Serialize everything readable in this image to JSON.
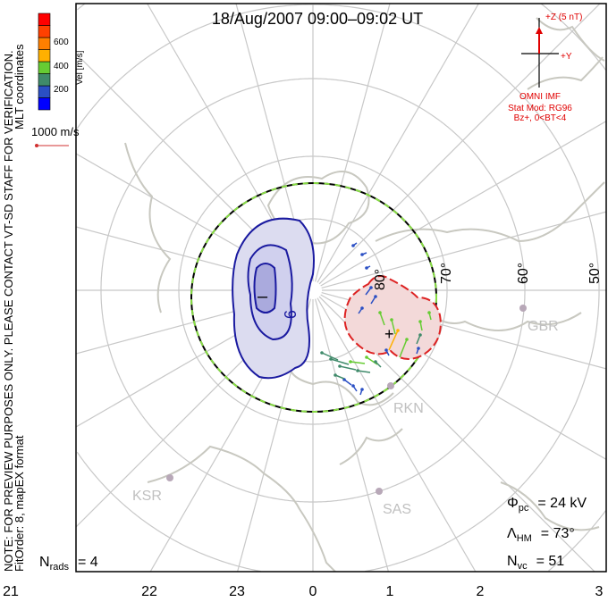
{
  "title": "18/Aug/2007 09:00–09:02 UT",
  "side_notes": {
    "note": "NOTE: FOR PREVIEW PURPOSES ONLY. PLEASE CONTACT VT-SD STAFF FOR VERIFICATION.",
    "fit": "FitOrder: 8, mapEX format",
    "coords": "MLT coordinates"
  },
  "colorbar": {
    "label": "Vel [m/s]",
    "ticks": [
      "600",
      "400",
      "200"
    ],
    "colors": [
      "#0000ff",
      "#2a4fc4",
      "#3f8a6a",
      "#66cc33",
      "#ffb000",
      "#ff7f00",
      "#ff4000",
      "#ff0000"
    ]
  },
  "scale_vector": {
    "label": "1000 m/s",
    "color": "#d03030"
  },
  "imf": {
    "z_label": "+Z (5 nT)",
    "y_label": "+Y",
    "source": "OMNI IMF",
    "model": "Stat Mod: RG96",
    "condition": "Bz+, 0<BT<4",
    "color": "#e00000"
  },
  "latitude_labels": [
    "80°",
    "70°",
    "60°",
    "50°"
  ],
  "mlt_labels": [
    "21",
    "22",
    "23",
    "0",
    "1",
    "2",
    "3"
  ],
  "radars": [
    "GBR",
    "RKN",
    "KSR",
    "SAS"
  ],
  "cells": {
    "negative_marker": "–",
    "positive_marker": "+",
    "contour_label": "9"
  },
  "stats": {
    "phi_symbol": "Φ",
    "phi_sub": "pc",
    "phi_value": "=  24  kV",
    "lambda_symbol": "Λ",
    "lambda_sub": "HM",
    "lambda_value": "=  73°",
    "nvc_symbol": "N",
    "nvc_sub": "vc",
    "nvc_value": "=  51",
    "nrads_symbol": "N",
    "nrads_sub": "rads",
    "nrads_value": "=  4"
  }
}
